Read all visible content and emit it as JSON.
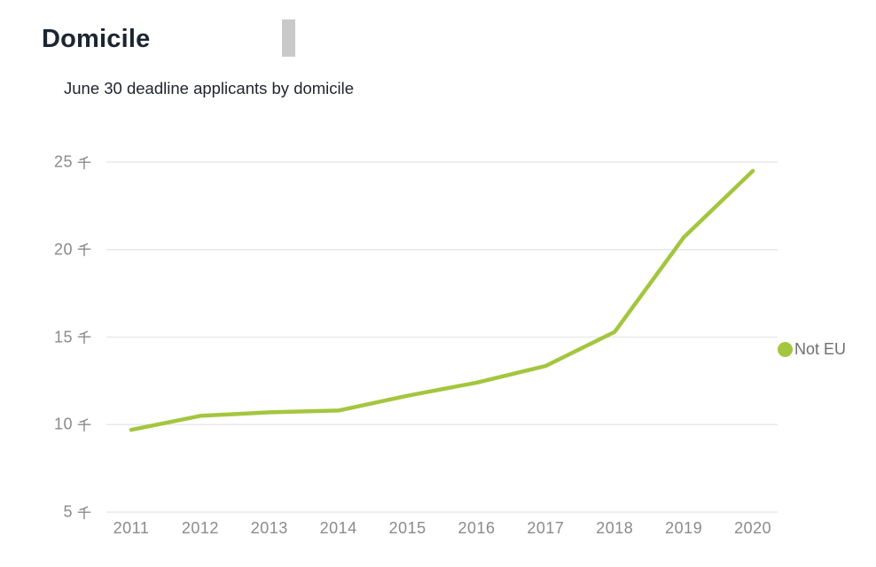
{
  "header": {
    "title": "Domicile"
  },
  "chart_data": {
    "type": "line",
    "title": "Domicile",
    "subtitle": "June 30 deadline applicants by domicile",
    "categories": [
      "2011",
      "2012",
      "2013",
      "2014",
      "2015",
      "2016",
      "2017",
      "2018",
      "2019",
      "2020"
    ],
    "series": [
      {
        "name": "Not EU",
        "color": "#a4c63f",
        "values": [
          9700,
          10500,
          10700,
          10800,
          11650,
          12400,
          13350,
          15300,
          20700,
          24500
        ]
      }
    ],
    "xlabel": "",
    "ylabel": "",
    "y_unit_label": "千",
    "y_ticks_thousands": [
      5,
      10,
      15,
      20,
      25
    ],
    "ylim_thousands": [
      5,
      25
    ],
    "grid": true,
    "gridline_color": "#e9e9e9",
    "axis_label_color": "#8b8b8b",
    "legend_position": "right"
  }
}
